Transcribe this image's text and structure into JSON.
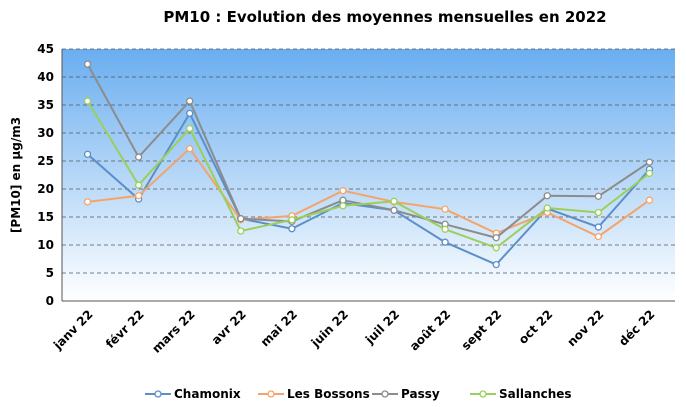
{
  "chart_data": {
    "type": "line",
    "title": "PM10 : Evolution des moyennes mensuelles en 2022",
    "y_label": "[PM10]  en µg/m3",
    "categories": [
      "janv 22",
      "févr 22",
      "mars 22",
      "avr 22",
      "mai 22",
      "juin 22",
      "juil 22",
      "août 22",
      "sept 22",
      "oct 22",
      "nov 22",
      "déc 22"
    ],
    "series": [
      {
        "name": "Chamonix",
        "color": "#5b8fc9",
        "values": [
          26.2,
          18.2,
          33.5,
          14.7,
          12.9,
          17.5,
          16.2,
          10.5,
          6.5,
          16.5,
          13.2,
          23.5
        ]
      },
      {
        "name": "Les Bossons",
        "color": "#f4a46a",
        "values": [
          17.7,
          18.8,
          27.2,
          14.5,
          15.2,
          19.7,
          17.7,
          16.4,
          12.1,
          15.8,
          11.5,
          18.0
        ]
      },
      {
        "name": "Passy",
        "color": "#8c8c8c",
        "values": [
          42.3,
          25.7,
          35.7,
          14.7,
          14.2,
          18.0,
          16.2,
          13.7,
          11.3,
          18.8,
          18.7,
          24.8
        ]
      },
      {
        "name": "Sallanches",
        "color": "#9bcf5b",
        "values": [
          35.7,
          20.7,
          30.8,
          12.5,
          14.5,
          17.0,
          17.8,
          12.8,
          9.5,
          16.6,
          15.8,
          22.8
        ]
      }
    ],
    "ylim": [
      0,
      45
    ],
    "yticks": [
      0,
      5,
      10,
      15,
      20,
      25,
      30,
      35,
      40,
      45
    ],
    "grid": true,
    "legend": "bottom"
  }
}
